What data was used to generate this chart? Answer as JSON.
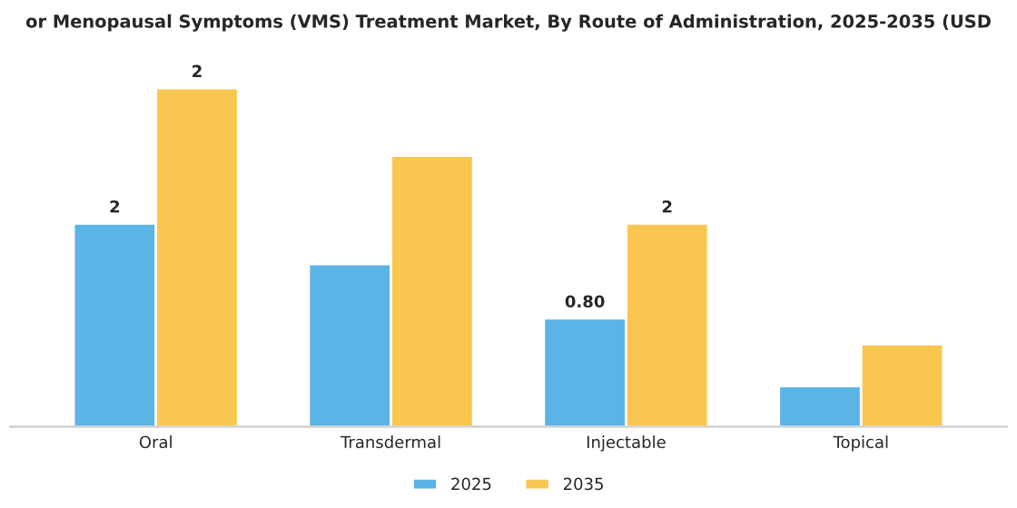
{
  "chart_data": {
    "type": "bar",
    "title": "or Menopausal Symptoms (VMS) Treatment Market, By Route of Administration, 2025-2035 (USD",
    "categories": [
      "Oral",
      "Transdermal",
      "Injectable",
      "Topical"
    ],
    "series": [
      {
        "name": "2025",
        "color": "#5ab4e5",
        "values": [
          1.5,
          1.2,
          0.8,
          0.3
        ],
        "value_labels": [
          "2",
          null,
          "0.80",
          null
        ]
      },
      {
        "name": "2035",
        "color": "#f9c74f",
        "values": [
          2.5,
          2.0,
          1.5,
          0.61
        ],
        "value_labels": [
          "2",
          null,
          "2",
          null
        ]
      }
    ],
    "legend": "bottom",
    "grid": false
  }
}
